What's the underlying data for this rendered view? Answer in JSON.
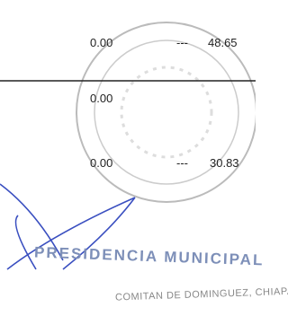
{
  "rows": [
    {
      "value": "0.00",
      "separator": "---",
      "total": "48.65"
    },
    {
      "value": "0.00"
    },
    {
      "value": "0.00",
      "separator": "---",
      "total": "30.83"
    }
  ],
  "stamp": {
    "title": "PRESIDENCIA MUNICIPAL",
    "location": "COMITAN DE DOMINGUEZ, CHIAPAS"
  }
}
